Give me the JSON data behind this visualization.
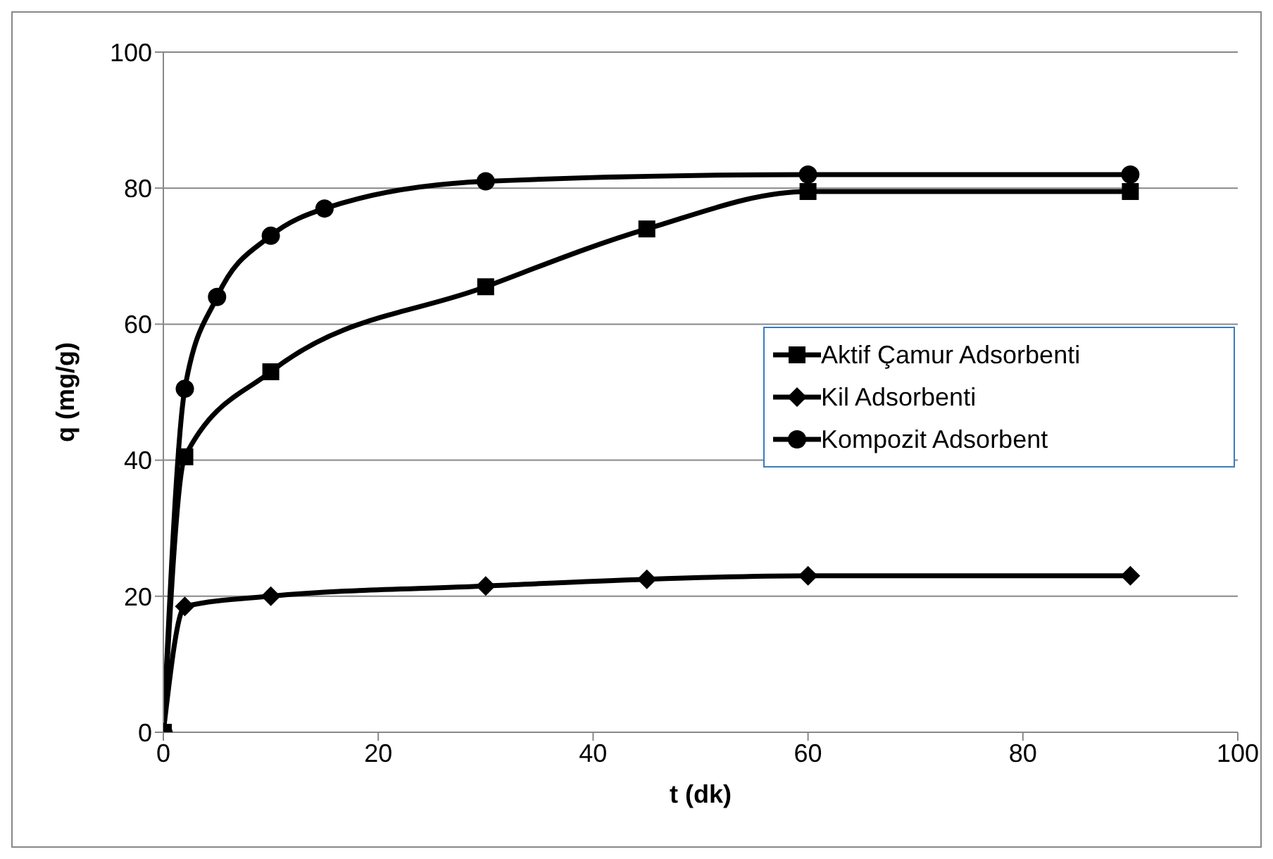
{
  "chart_data": {
    "type": "line",
    "xlabel": "t (dk)",
    "ylabel": "q (mg/g)",
    "xlim": [
      0,
      100
    ],
    "xticks": [
      0,
      20,
      40,
      60,
      80,
      100
    ],
    "ylim": [
      0,
      100
    ],
    "yticks": [
      0,
      20,
      40,
      60,
      80,
      100
    ],
    "grid": "y",
    "legend": "right",
    "line_style": "solid",
    "series": [
      {
        "name": "Aktif Çamur Adsorbenti",
        "color": "#000000",
        "marker": "square",
        "x": [
          0,
          2,
          10,
          30,
          45,
          60,
          90
        ],
        "values": [
          0,
          40.5,
          53,
          65.5,
          74,
          79.5,
          79.5
        ]
      },
      {
        "name": "Kil Adsorbenti",
        "color": "#000000",
        "marker": "diamond",
        "x": [
          0,
          2,
          10,
          30,
          45,
          60,
          90
        ],
        "values": [
          0,
          18.5,
          20,
          21.5,
          22.5,
          23,
          23
        ]
      },
      {
        "name": "Kompozit Adsorbent",
        "color": "#000000",
        "marker": "circle",
        "x": [
          0,
          2,
          5,
          10,
          15,
          30,
          60,
          90
        ],
        "values": [
          0,
          50.5,
          64,
          73,
          77,
          81,
          82,
          82
        ]
      }
    ]
  }
}
